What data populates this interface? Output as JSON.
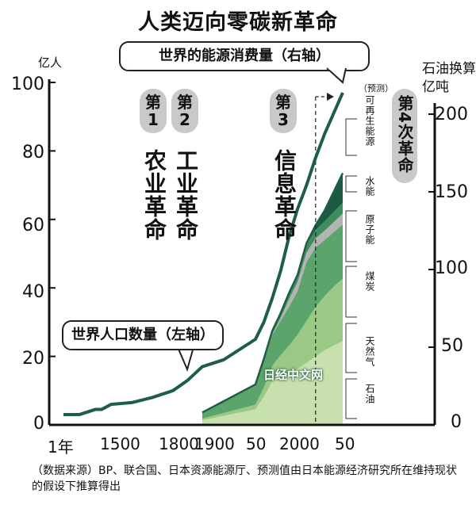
{
  "title": "人类迈向零碳新革命",
  "energy_label": "世界的能源消费量（右轴）",
  "population_label": "世界人口数量（左轴）",
  "left_unit": "亿人",
  "right_unit_1": "石油换算",
  "right_unit_2": "亿吨",
  "forecast_label": "（预测）",
  "watermark": "日经中文网",
  "left_ticks": [
    "0",
    "20",
    "40",
    "60",
    "80",
    "100"
  ],
  "right_ticks": [
    "0",
    "50",
    "100",
    "150",
    "200"
  ],
  "x_ticks": [
    "1年",
    "1500",
    "1800",
    "1900",
    "50",
    "2000",
    "50"
  ],
  "revolutions": [
    {
      "pill": "第\n1",
      "name": "农业革命"
    },
    {
      "pill": "第\n2",
      "name": "工业革命"
    },
    {
      "pill": "第\n3",
      "name": "信息革命"
    },
    {
      "pill": "第4次革命",
      "name": ""
    }
  ],
  "source_labels": [
    "可再生能源",
    "水能",
    "原子能",
    "煤炭",
    "天然气",
    "石油"
  ],
  "source_note": "（数据来源）BP、联合国、日本资源能源厅、预测值由日本能源经济研究所在维持现状的假设下推算得出",
  "colors": {
    "population_line": "#1d5e45",
    "oil": "#c8dfae",
    "gas": "#99c985",
    "coal": "#5ba46b",
    "nuclear": "#b3b3b3",
    "hydro": "#3f8c5c",
    "renewable": "#1c5a41",
    "total_line": "#1d5e45"
  },
  "chart_data": {
    "type": "area",
    "population": {
      "axis": "left",
      "x": [
        "1年",
        "500",
        "1000",
        "1200",
        "1500",
        "1600",
        "1700",
        "1800",
        "1850",
        "1900",
        "1920",
        "1950",
        "1960",
        "1970",
        "1980",
        "1990",
        "2000",
        "2010",
        "2020",
        "2030",
        "2040",
        "2050"
      ],
      "values": [
        3,
        3,
        4.5,
        4.5,
        6,
        6.5,
        8,
        10,
        13,
        17,
        19,
        25,
        30,
        37,
        45,
        55,
        63,
        70,
        78,
        85,
        91,
        97
      ]
    },
    "energy": {
      "axis": "right",
      "x": [
        1900,
        1950,
        1960,
        1970,
        1980,
        1990,
        2000,
        2010,
        2020,
        2030,
        2040,
        2050
      ],
      "series": [
        {
          "name": "石油",
          "values": [
            3,
            10,
            18,
            28,
            32,
            33,
            36,
            40,
            44,
            48,
            51,
            54
          ]
        },
        {
          "name": "天然气",
          "values": [
            1,
            3,
            6,
            10,
            13,
            18,
            22,
            27,
            32,
            35,
            38,
            40
          ]
        },
        {
          "name": "煤炭",
          "values": [
            4,
            12,
            17,
            20,
            22,
            25,
            28,
            38,
            38,
            36,
            35,
            35
          ]
        },
        {
          "name": "原子能",
          "values": [
            0,
            0,
            0,
            0.5,
            2,
            5,
            6,
            6,
            6,
            6,
            6.5,
            7
          ]
        },
        {
          "name": "水能",
          "values": [
            0,
            1,
            1.5,
            2,
            3,
            4,
            4.5,
            5,
            5.5,
            6,
            6.5,
            7
          ]
        },
        {
          "name": "可再生能源",
          "values": [
            0,
            0,
            0,
            0,
            0,
            0,
            0,
            1,
            3,
            7,
            13,
            19
          ]
        }
      ]
    },
    "left_axis": {
      "label": "亿人",
      "ylim": [
        0,
        100
      ]
    },
    "right_axis": {
      "label": "石油换算亿吨",
      "ylim": [
        0,
        200
      ]
    },
    "forecast_start": 2020
  }
}
